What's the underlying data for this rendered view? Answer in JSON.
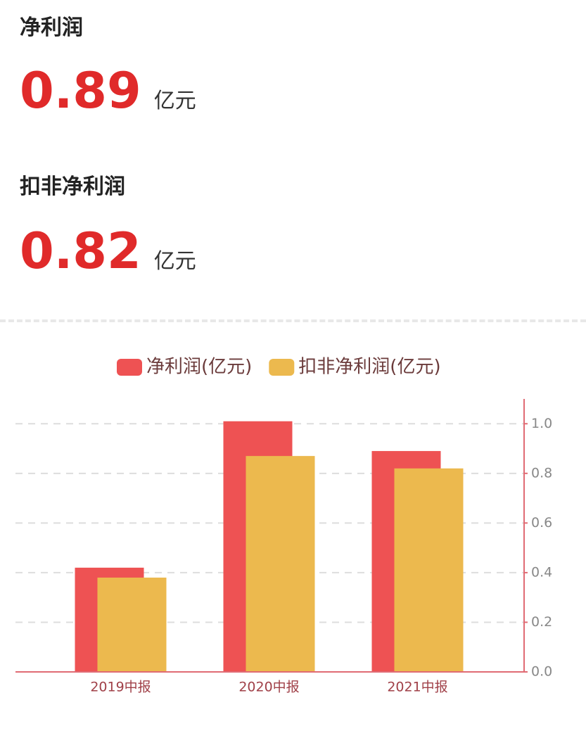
{
  "metrics": [
    {
      "label": "净利润",
      "value": 0.89,
      "unit": "亿元"
    },
    {
      "label": "扣非净利润",
      "value": 0.82,
      "unit": "亿元"
    }
  ],
  "chart_data": {
    "type": "bar",
    "categories": [
      "2019中报",
      "2020中报",
      "2021中报"
    ],
    "series": [
      {
        "name": "净利润(亿元)",
        "color": "#ee5253",
        "values": [
          0.42,
          1.01,
          0.89
        ]
      },
      {
        "name": "扣非净利润(亿元)",
        "color": "#ecb94e",
        "values": [
          0.38,
          0.87,
          0.82
        ]
      }
    ],
    "ylim": [
      0,
      1.1
    ],
    "yticks": [
      {
        "value": 0,
        "label": "0.0"
      },
      0.2,
      0.4,
      0.6,
      0.8,
      {
        "value": 1,
        "label": "1.0"
      }
    ],
    "grid": true
  }
}
